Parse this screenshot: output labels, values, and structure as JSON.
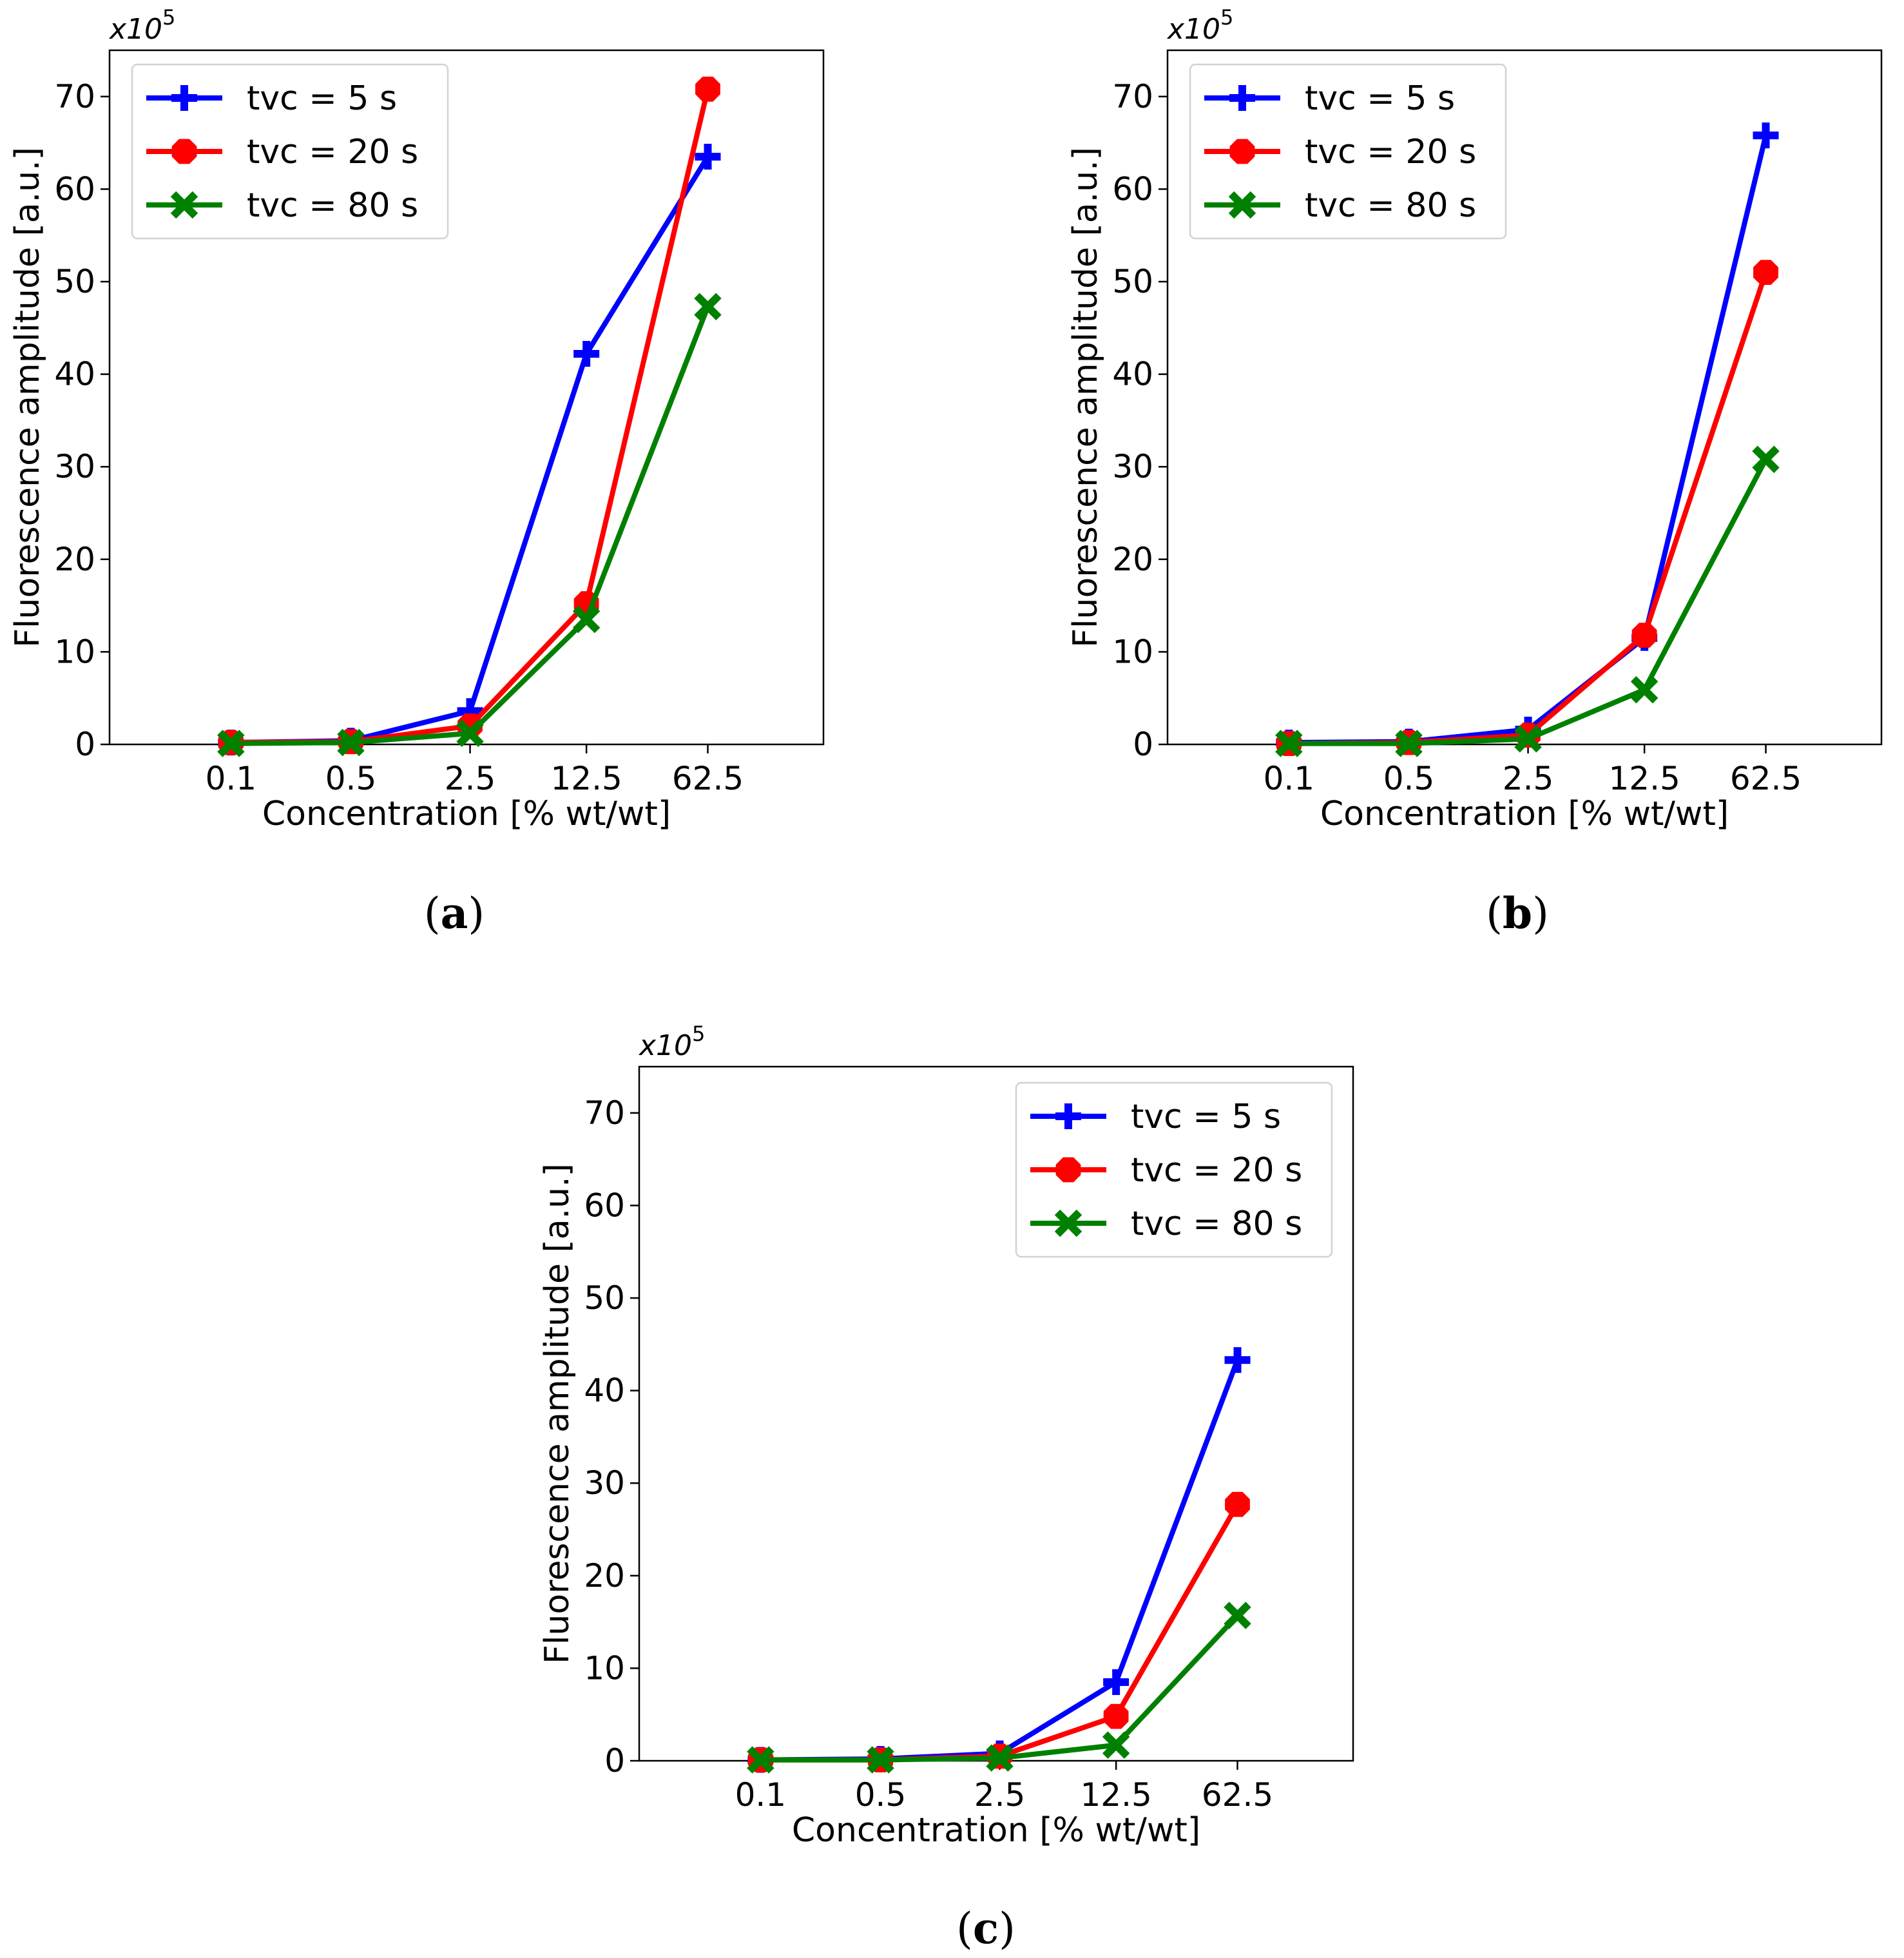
{
  "chart_data": [
    {
      "type": "line",
      "panel_label": "a",
      "categories": [
        "0.1",
        "0.5",
        "2.5",
        "12.5",
        "62.5"
      ],
      "xlabel": "Concentration [% wt/wt]",
      "ylabel": "Fluorescence amplitude [a.u.]",
      "y_multiplier": "x10",
      "y_exponent": "5",
      "ylim": [
        0,
        75
      ],
      "yticks": [
        0,
        10,
        20,
        30,
        40,
        50,
        60,
        70
      ],
      "legend_position": "top-left",
      "series": [
        {
          "name": "tvc = 5 s",
          "color": "#0000ff",
          "marker": "plus",
          "values": [
            0.2,
            0.4,
            3.6,
            42.2,
            63.5
          ]
        },
        {
          "name": "tvc = 20 s",
          "color": "#ff0000",
          "marker": "octagon",
          "values": [
            0.2,
            0.3,
            2.0,
            15.2,
            70.8
          ]
        },
        {
          "name": "tvc = 80 s",
          "color": "#008000",
          "marker": "x",
          "values": [
            0.1,
            0.2,
            1.2,
            13.5,
            47.3
          ]
        }
      ]
    },
    {
      "type": "line",
      "panel_label": "b",
      "categories": [
        "0.1",
        "0.5",
        "2.5",
        "12.5",
        "62.5"
      ],
      "xlabel": "Concentration [% wt/wt]",
      "ylabel": "Fluorescence amplitude [a.u.]",
      "y_multiplier": "x10",
      "y_exponent": "5",
      "ylim": [
        0,
        75
      ],
      "yticks": [
        0,
        10,
        20,
        30,
        40,
        50,
        60,
        70
      ],
      "legend_position": "top-left",
      "series": [
        {
          "name": "tvc = 5 s",
          "color": "#0000ff",
          "marker": "plus",
          "values": [
            0.2,
            0.3,
            1.6,
            11.5,
            65.8
          ]
        },
        {
          "name": "tvc = 20 s",
          "color": "#ff0000",
          "marker": "octagon",
          "values": [
            0.1,
            0.2,
            1.0,
            11.8,
            51.0
          ]
        },
        {
          "name": "tvc = 80 s",
          "color": "#008000",
          "marker": "x",
          "values": [
            0.1,
            0.1,
            0.6,
            5.9,
            30.8
          ]
        }
      ]
    },
    {
      "type": "line",
      "panel_label": "c",
      "categories": [
        "0.1",
        "0.5",
        "2.5",
        "12.5",
        "62.5"
      ],
      "xlabel": "Concentration [% wt/wt]",
      "ylabel": "Fluorescence amplitude [a.u.]",
      "y_multiplier": "x10",
      "y_exponent": "5",
      "ylim": [
        0,
        75
      ],
      "yticks": [
        0,
        10,
        20,
        30,
        40,
        50,
        60,
        70
      ],
      "legend_position": "top-right",
      "series": [
        {
          "name": "tvc = 5 s",
          "color": "#0000ff",
          "marker": "plus",
          "values": [
            0.1,
            0.2,
            0.8,
            8.5,
            43.3
          ]
        },
        {
          "name": "tvc = 20 s",
          "color": "#ff0000",
          "marker": "octagon",
          "values": [
            0.1,
            0.1,
            0.5,
            4.8,
            27.7
          ]
        },
        {
          "name": "tvc = 80 s",
          "color": "#008000",
          "marker": "x",
          "values": [
            0.1,
            0.1,
            0.3,
            1.7,
            15.7
          ]
        }
      ]
    }
  ]
}
